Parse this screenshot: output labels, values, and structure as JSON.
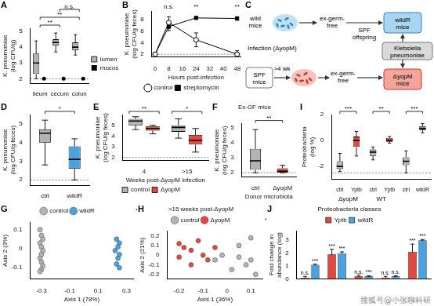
{
  "chart_data": [
    {
      "panel": "A",
      "type": "box",
      "y_label": [
        "K. pneumoniae",
        "(log CFU/g)"
      ],
      "categories": [
        "ileum",
        "cecum",
        "colon"
      ],
      "series": [
        {
          "name": "lumen",
          "type": "box",
          "color": "#b3b3b3",
          "values": [
            {
              "min": 2.0,
              "q1": 2.3,
              "median": 3.0,
              "q3": 3.6,
              "max": 4.4
            },
            {
              "min": 3.7,
              "q1": 4.1,
              "median": 4.3,
              "q3": 4.5,
              "max": 4.9
            },
            {
              "min": 3.5,
              "q1": 3.8,
              "median": 4.0,
              "q3": 4.3,
              "max": 4.8
            }
          ]
        },
        {
          "name": "mucosa",
          "type": "point",
          "color": "#000000",
          "values": [
            2.0,
            2.0,
            2.0
          ]
        }
      ],
      "ylim": [
        1.7,
        5.2
      ],
      "yticks": [
        2,
        3,
        4,
        5
      ],
      "grid": false,
      "legend": "right",
      "detection_limit": 2,
      "annotations": [
        {
          "text": "**",
          "from": 0,
          "to": 1
        },
        {
          "text": "**",
          "from": 0,
          "to": 2
        },
        {
          "text": "n.s.",
          "from": 1,
          "to": 2
        }
      ]
    },
    {
      "panel": "B",
      "type": "line",
      "y_label": [
        "K. pneumoniae",
        "(log CFU/g feces)"
      ],
      "x_label": "Hours post-infection",
      "x": [
        0,
        8,
        24,
        48
      ],
      "series": [
        {
          "name": "control",
          "color": "#000000",
          "marker": "circle-open",
          "values": [
            2.0,
            7.5,
            4.5,
            2.0
          ],
          "errors": [
            0,
            1.0,
            1.2,
            0.6
          ]
        },
        {
          "name": "streptomycin",
          "color": "#000000",
          "marker": "square",
          "values": [
            2.0,
            6.8,
            8.3,
            8.2
          ],
          "errors": [
            0,
            0.7,
            0.2,
            0.3
          ]
        }
      ],
      "xlim": [
        -2,
        50
      ],
      "xticks": [
        0,
        8,
        16,
        24,
        32,
        40,
        48
      ],
      "ylim": [
        1.5,
        9.5
      ],
      "yticks": [
        2,
        4,
        6,
        8
      ],
      "grid": false,
      "legend": "bottom",
      "detection_limit": 2,
      "annotations": [
        {
          "text": "n.s.",
          "x": 8
        },
        {
          "text": "**",
          "x": 24
        },
        {
          "text": "**",
          "x": 48
        }
      ]
    },
    {
      "panel": "D",
      "type": "box",
      "y_label": [
        "K. pneumoniae",
        "(log CFU/g feces)"
      ],
      "categories": [
        "ctrl",
        "wildR"
      ],
      "values": [
        {
          "min": 2.8,
          "q1": 4.0,
          "median": 4.5,
          "q3": 4.7,
          "max": 5.2
        },
        {
          "min": 2.0,
          "q1": 2.6,
          "median": 3.1,
          "q3": 3.8,
          "max": 4.2
        }
      ],
      "colors": [
        "#b3b3b3",
        "#4aa3df"
      ],
      "ylim": [
        1.7,
        5.5
      ],
      "yticks": [
        2,
        3,
        4,
        5
      ],
      "grid": false,
      "detection_limit": 2,
      "annotations": [
        {
          "text": "*",
          "from": 0,
          "to": 1
        }
      ]
    },
    {
      "panel": "E",
      "type": "box",
      "y_label": [
        "K. pneumoniae",
        "(log CFU/g feces)"
      ],
      "x_label": "Weeks post-ΔyopM infection",
      "categories": [
        "4",
        ">15"
      ],
      "series": [
        {
          "name": "control",
          "type": "box",
          "color": "#b3b3b3",
          "values": [
            {
              "min": 4.6,
              "q1": 5.0,
              "median": 5.4,
              "q3": 5.6,
              "max": 5.8
            },
            {
              "min": 3.8,
              "q1": 4.4,
              "median": 4.8,
              "q3": 5.0,
              "max": 5.6
            }
          ]
        },
        {
          "name": "ΔyopM",
          "type": "box",
          "color": "#e2483d",
          "values": [
            {
              "min": 4.2,
              "q1": 4.5,
              "median": 4.7,
              "q3": 4.9,
              "max": 5.0
            },
            {
              "min": 2.5,
              "q1": 3.2,
              "median": 3.6,
              "q3": 4.1,
              "max": 4.7
            }
          ]
        }
      ],
      "ylim": [
        1.7,
        6.0
      ],
      "yticks": [
        2,
        3,
        4,
        5
      ],
      "grid": false,
      "legend": "bottom",
      "detection_limit": 2,
      "annotations": [
        {
          "text": "**",
          "from": 0,
          "to": 0
        },
        {
          "text": "*",
          "from": 1,
          "to": 1
        }
      ]
    },
    {
      "panel": "F",
      "type": "box",
      "title": "Ex-GF mice",
      "y_label": [
        "K. pneumoniae",
        "(log CFU/g feces)"
      ],
      "x_label": "Donor microbiota",
      "categories": [
        "ctrl",
        "ΔyopM"
      ],
      "values": [
        {
          "min": 2.0,
          "q1": 2.2,
          "median": 2.8,
          "q3": 3.6,
          "max": 4.9
        },
        {
          "min": 2.0,
          "q1": 2.0,
          "median": 2.1,
          "q3": 2.3,
          "max": 2.5
        }
      ],
      "colors": [
        "#b3b3b3",
        "#e2483d"
      ],
      "ylim": [
        1.7,
        5.3
      ],
      "yticks": [
        2,
        3,
        4,
        5
      ],
      "grid": false,
      "detection_limit": 2,
      "annotations": [
        {
          "text": "**",
          "from": 0,
          "to": 1
        }
      ]
    },
    {
      "panel": "I",
      "type": "box",
      "y_label": [
        "Proteobacteria",
        "(log %)"
      ],
      "categories": [
        "ctrl",
        "Yptb",
        "ctrl",
        "Yptb",
        "ctrl",
        "wildR"
      ],
      "values": [
        {
          "min": -2.4,
          "q1": -2.2,
          "median": -2.0,
          "q3": -1.6,
          "max": -1.0
        },
        {
          "min": -1.2,
          "q1": -0.5,
          "median": 0.0,
          "q3": 0.3,
          "max": 0.7
        },
        {
          "min": -1.5,
          "q1": -1.2,
          "median": -0.9,
          "q3": -0.7,
          "max": -0.5
        },
        {
          "min": -0.2,
          "q1": -0.1,
          "median": 0.0,
          "q3": 0.2,
          "max": 0.3
        },
        {
          "min": -2.5,
          "q1": -1.9,
          "median": -1.6,
          "q3": -1.3,
          "max": -0.8
        },
        {
          "min": 0.6,
          "q1": 0.8,
          "median": 0.9,
          "q3": 1.1,
          "max": 1.3
        }
      ],
      "colors": [
        "#b3b3b3",
        "#e2483d",
        "#b3b3b3",
        "#e2483d",
        "#b3b3b3",
        "#4aa3df"
      ],
      "category_groups": [
        {
          "label": "ΔyopM",
          "from": 0,
          "to": 1
        },
        {
          "label": "WT",
          "from": 2,
          "to": 3
        }
      ],
      "ylim": [
        -3,
        2
      ],
      "yticks": [
        -2,
        0,
        2
      ],
      "grid": false,
      "detection_limit": -2.5,
      "annotations": [
        {
          "text": "***",
          "from": 0,
          "to": 1
        },
        {
          "text": "**",
          "from": 2,
          "to": 3
        },
        {
          "text": "***",
          "from": 4,
          "to": 5
        }
      ]
    },
    {
      "panel": "G",
      "type": "scatter",
      "x_label": "Axis 1 (78%)",
      "y_label": "Axis 2 (3%)",
      "series": [
        {
          "name": "control",
          "color": "#b3b3b3",
          "values": [
            [
              -0.31,
              0.1
            ],
            [
              -0.3,
              0.07
            ],
            [
              -0.29,
              0.05
            ],
            [
              -0.31,
              0.03
            ],
            [
              -0.3,
              0.01
            ],
            [
              -0.29,
              -0.01
            ],
            [
              -0.3,
              -0.03
            ],
            [
              -0.31,
              -0.05
            ],
            [
              -0.3,
              -0.07
            ],
            [
              -0.29,
              -0.09
            ],
            [
              -0.3,
              -0.11
            ],
            [
              -0.31,
              -0.12
            ]
          ]
        },
        {
          "name": "wildR",
          "color": "#4aa3df",
          "values": [
            [
              0.23,
              0.05
            ],
            [
              0.25,
              0.03
            ],
            [
              0.24,
              0.01
            ],
            [
              0.22,
              -0.01
            ],
            [
              0.25,
              -0.03
            ],
            [
              0.24,
              -0.05
            ],
            [
              0.23,
              -0.08
            ],
            [
              0.25,
              -0.1
            ]
          ]
        }
      ],
      "xlim": [
        -0.38,
        0.35
      ],
      "xticks": [
        -0.3,
        -0.1,
        0.1,
        0.3
      ],
      "ylim": [
        -0.16,
        0.14
      ],
      "yticks": [
        -0.1,
        0,
        0.1
      ],
      "grid": false,
      "legend": "top",
      "annotations": [
        {
          "text": "*"
        }
      ]
    },
    {
      "panel": "H",
      "type": "scatter",
      "title": ">15 weeks post-ΔyopM",
      "x_label": "Axis 1 (36%)",
      "y_label": "Axis 2 (21%)",
      "series": [
        {
          "name": "control",
          "color": "#b3b3b3",
          "values": [
            [
              0.05,
              0.1
            ],
            [
              0.1,
              0.18
            ],
            [
              -0.05,
              -0.05
            ],
            [
              0.02,
              -0.15
            ],
            [
              0.08,
              -0.1
            ],
            [
              -0.02,
              0.0
            ],
            [
              0.1,
              -0.05
            ],
            [
              0.12,
              -0.2
            ],
            [
              0.05,
              -0.02
            ]
          ]
        },
        {
          "name": "ΔyopM",
          "color": "#e2483d",
          "values": [
            [
              -0.2,
              0.12
            ],
            [
              -0.18,
              0.08
            ],
            [
              -0.15,
              0.05
            ],
            [
              -0.12,
              0.15
            ],
            [
              -0.1,
              0.0
            ],
            [
              -0.08,
              -0.05
            ],
            [
              -0.2,
              -0.02
            ],
            [
              -0.15,
              -0.1
            ],
            [
              -0.05,
              0.08
            ]
          ]
        }
      ],
      "xlim": [
        -0.25,
        0.15
      ],
      "xticks": [
        -0.2,
        -0.1,
        0,
        0.1
      ],
      "ylim": [
        -0.25,
        0.25
      ],
      "yticks": [
        -0.2,
        -0.1,
        0,
        0.1,
        0.2
      ],
      "grid": false,
      "legend": "top",
      "annotations": [
        {
          "text": "*"
        }
      ]
    },
    {
      "panel": "J",
      "type": "bar",
      "title": "Proteobacteria classes",
      "y_label": [
        "Fold change in",
        "abundance (log)"
      ],
      "categories": [
        null,
        null,
        null,
        null,
        null
      ],
      "series": [
        {
          "name": "Yptb",
          "color": "#e2483d",
          "values": [
            0.1,
            1.9,
            0.2,
            0.1,
            2.1
          ],
          "errors": [
            0.1,
            0.4,
            0.1,
            0.1,
            0.6
          ],
          "significance": [
            "n.s.",
            "***",
            "n.s.",
            "n.s.",
            "***"
          ]
        },
        {
          "name": "wildR",
          "color": "#4aa3df",
          "values": [
            1.1,
            2.0,
            0.2,
            0.2,
            3.0
          ],
          "errors": [
            0.05,
            0.1,
            0.05,
            0.05,
            0.05
          ],
          "significance": [
            "***",
            "***",
            "***",
            "n.s.",
            "***"
          ]
        }
      ],
      "ylim": [
        0,
        3.7
      ],
      "yticks": [
        0,
        1,
        2,
        3
      ],
      "grid": false,
      "legend": "top"
    }
  ],
  "diagram": {
    "panel": "C",
    "nodes": [
      {
        "label": [
          "wild",
          "mice"
        ]
      },
      {
        "label": [
          "ex-germ-",
          "free"
        ]
      },
      {
        "label": [
          "SPF",
          "offspring"
        ]
      },
      {
        "label": [
          "wildR",
          "mice"
        ],
        "color": "#a9d4f2"
      },
      {
        "label": [
          "Klebsiella",
          "pneumoniae"
        ],
        "color": "#d9d9d9"
      },
      {
        "label": [
          "Infection (ΔyopM)"
        ]
      },
      {
        "label": [
          ">4 wk"
        ]
      },
      {
        "label": [
          "SPF",
          "mice"
        ],
        "color": "#ffffff"
      },
      {
        "label": [
          "ex-germ-",
          "free"
        ]
      },
      {
        "label": [
          "ΔyopM",
          "mice"
        ],
        "color": "#f4a49a"
      }
    ]
  },
  "watermark": "搜狐号@小张聊科研"
}
